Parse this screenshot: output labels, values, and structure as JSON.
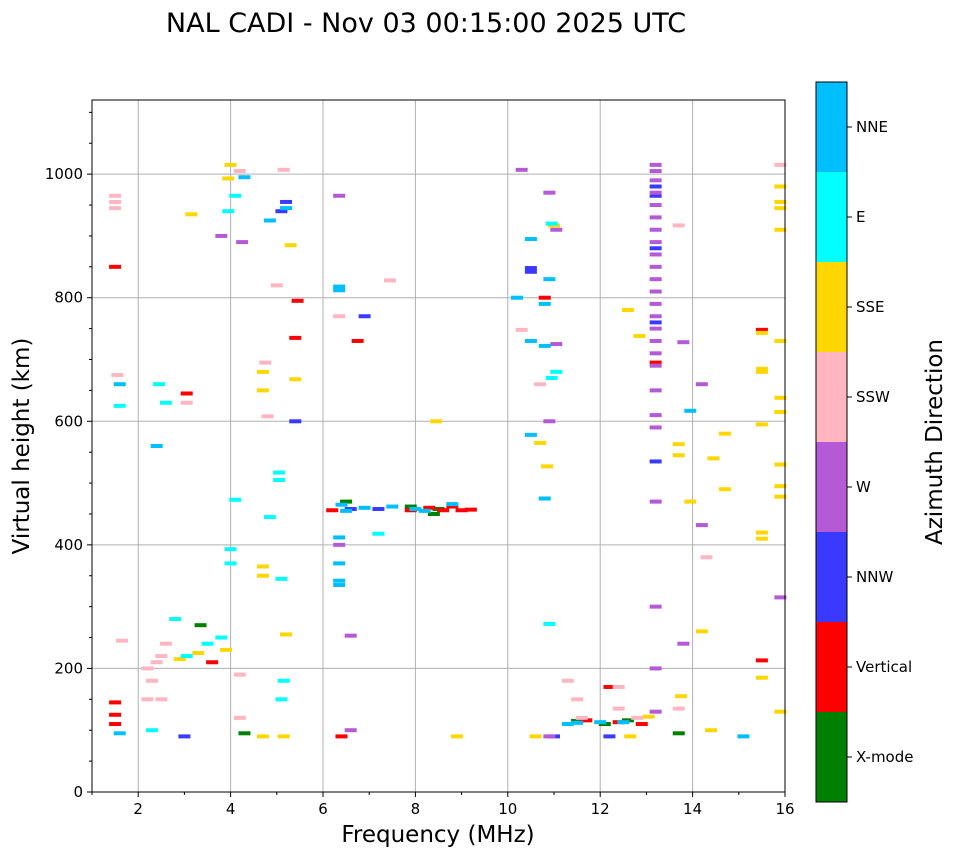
{
  "chart_data": {
    "type": "scatter",
    "title": "NAL CADI - Nov 03 00:15:00 2025 UTC",
    "xlabel": "Frequency (MHz)",
    "ylabel": "Virtual height (km)",
    "xlim": [
      1,
      16
    ],
    "ylim": [
      0,
      1120
    ],
    "xticks": [
      2,
      4,
      6,
      8,
      10,
      12,
      14,
      16
    ],
    "yticks": [
      0,
      200,
      400,
      600,
      800,
      1000
    ],
    "grid": true,
    "colorbar": {
      "label": "Azimuth Direction",
      "categories": [
        "X-mode",
        "Vertical",
        "NNW",
        "W",
        "SSW",
        "SSE",
        "E",
        "NNE"
      ],
      "colors": [
        "#008000",
        "#ff0000",
        "#3a3aff",
        "#b45ad6",
        "#ffb6c1",
        "#ffd700",
        "#00ffff",
        "#00bfff"
      ]
    },
    "series": [
      {
        "name": "X-mode",
        "points": [
          [
            3.35,
            270
          ],
          [
            4.3,
            95
          ],
          [
            6.5,
            470
          ],
          [
            7.9,
            462
          ],
          [
            8.5,
            458
          ],
          [
            8.4,
            450
          ],
          [
            11.5,
            115
          ],
          [
            12.1,
            110
          ],
          [
            12.6,
            116
          ],
          [
            13.7,
            95
          ]
        ]
      },
      {
        "name": "Vertical",
        "points": [
          [
            1.5,
            850
          ],
          [
            1.5,
            145
          ],
          [
            1.5,
            125
          ],
          [
            1.5,
            110
          ],
          [
            3.05,
            645
          ],
          [
            5.4,
            735
          ],
          [
            5.45,
            795
          ],
          [
            6.75,
            730
          ],
          [
            6.4,
            90
          ],
          [
            6.2,
            456
          ],
          [
            7.9,
            456
          ],
          [
            8.3,
            460
          ],
          [
            8.8,
            462
          ],
          [
            9.2,
            457
          ],
          [
            9.0,
            456
          ],
          [
            8.6,
            456
          ],
          [
            10.8,
            800
          ],
          [
            11.7,
            116
          ],
          [
            12.4,
            113
          ],
          [
            12.9,
            110
          ],
          [
            12.2,
            170
          ],
          [
            13.2,
            695
          ],
          [
            15.5,
            213
          ],
          [
            15.5,
            748
          ],
          [
            3.6,
            210
          ]
        ]
      },
      {
        "name": "NNW",
        "points": [
          [
            3.0,
            90
          ],
          [
            5.4,
            600
          ],
          [
            5.1,
            940
          ],
          [
            5.2,
            955
          ],
          [
            6.6,
            458
          ],
          [
            7.2,
            458
          ],
          [
            6.9,
            770
          ],
          [
            10.5,
            848
          ],
          [
            10.5,
            842
          ],
          [
            12.2,
            90
          ],
          [
            11.0,
            90
          ],
          [
            13.2,
            535
          ],
          [
            13.2,
            760
          ],
          [
            13.2,
            980
          ],
          [
            13.2,
            965
          ],
          [
            13.2,
            880
          ]
        ]
      },
      {
        "name": "W",
        "points": [
          [
            3.8,
            900
          ],
          [
            4.25,
            890
          ],
          [
            6.35,
            965
          ],
          [
            6.35,
            400
          ],
          [
            6.6,
            253
          ],
          [
            6.6,
            100
          ],
          [
            10.9,
            970
          ],
          [
            10.9,
            600
          ],
          [
            10.3,
            1007
          ],
          [
            11.05,
            910
          ],
          [
            10.9,
            90
          ],
          [
            11.05,
            725
          ],
          [
            13.8,
            728
          ],
          [
            13.8,
            240
          ],
          [
            14.2,
            660
          ],
          [
            14.2,
            432
          ],
          [
            15.9,
            315
          ],
          [
            13.2,
            1015
          ],
          [
            13.2,
            1005
          ],
          [
            13.2,
            990
          ],
          [
            13.2,
            970
          ],
          [
            13.2,
            950
          ],
          [
            13.2,
            930
          ],
          [
            13.2,
            910
          ],
          [
            13.2,
            890
          ],
          [
            13.2,
            870
          ],
          [
            13.2,
            850
          ],
          [
            13.2,
            830
          ],
          [
            13.2,
            810
          ],
          [
            13.2,
            790
          ],
          [
            13.2,
            770
          ],
          [
            13.2,
            750
          ],
          [
            13.2,
            730
          ],
          [
            13.2,
            710
          ],
          [
            13.2,
            690
          ],
          [
            13.2,
            650
          ],
          [
            13.2,
            610
          ],
          [
            13.2,
            590
          ],
          [
            13.2,
            470
          ],
          [
            13.2,
            300
          ],
          [
            13.2,
            200
          ],
          [
            13.2,
            130
          ]
        ]
      },
      {
        "name": "SSW",
        "points": [
          [
            1.5,
            965
          ],
          [
            1.5,
            955
          ],
          [
            1.5,
            945
          ],
          [
            1.55,
            675
          ],
          [
            1.65,
            245
          ],
          [
            2.2,
            200
          ],
          [
            2.3,
            180
          ],
          [
            2.4,
            210
          ],
          [
            2.5,
            220
          ],
          [
            2.6,
            240
          ],
          [
            2.2,
            150
          ],
          [
            2.5,
            150
          ],
          [
            3.05,
            630
          ],
          [
            4.2,
            1005
          ],
          [
            4.75,
            695
          ],
          [
            5.15,
            1007
          ],
          [
            5.0,
            820
          ],
          [
            4.8,
            608
          ],
          [
            4.2,
            190
          ],
          [
            4.2,
            120
          ],
          [
            6.35,
            770
          ],
          [
            7.45,
            828
          ],
          [
            10.3,
            748
          ],
          [
            10.7,
            660
          ],
          [
            11.3,
            180
          ],
          [
            11.5,
            150
          ],
          [
            11.6,
            120
          ],
          [
            12.4,
            170
          ],
          [
            12.4,
            135
          ],
          [
            12.8,
            120
          ],
          [
            13.7,
            917
          ],
          [
            13.7,
            135
          ],
          [
            14.3,
            380
          ],
          [
            15.9,
            1015
          ]
        ]
      },
      {
        "name": "SSE",
        "points": [
          [
            4.0,
            1015
          ],
          [
            3.95,
            993
          ],
          [
            3.15,
            935
          ],
          [
            5.3,
            885
          ],
          [
            4.7,
            680
          ],
          [
            4.7,
            650
          ],
          [
            5.4,
            668
          ],
          [
            8.45,
            600
          ],
          [
            10.7,
            565
          ],
          [
            10.85,
            527
          ],
          [
            11.0,
            917
          ],
          [
            12.6,
            780
          ],
          [
            12.85,
            738
          ],
          [
            13.7,
            563
          ],
          [
            13.7,
            545
          ],
          [
            13.75,
            155
          ],
          [
            13.95,
            470
          ],
          [
            14.45,
            540
          ],
          [
            14.7,
            580
          ],
          [
            14.2,
            260
          ],
          [
            14.4,
            100
          ],
          [
            14.7,
            490
          ],
          [
            15.5,
            595
          ],
          [
            15.5,
            420
          ],
          [
            15.5,
            410
          ],
          [
            15.5,
            743
          ],
          [
            15.5,
            685
          ],
          [
            15.5,
            680
          ],
          [
            15.5,
            185
          ],
          [
            15.9,
            980
          ],
          [
            15.9,
            955
          ],
          [
            15.9,
            945
          ],
          [
            15.9,
            910
          ],
          [
            15.9,
            730
          ],
          [
            15.9,
            638
          ],
          [
            15.9,
            615
          ],
          [
            15.9,
            530
          ],
          [
            15.9,
            495
          ],
          [
            15.9,
            478
          ],
          [
            15.9,
            130
          ],
          [
            4.7,
            350
          ],
          [
            4.7,
            365
          ],
          [
            5.2,
            255
          ],
          [
            4.7,
            90
          ],
          [
            5.15,
            90
          ],
          [
            8.9,
            90
          ],
          [
            10.6,
            90
          ],
          [
            12.65,
            90
          ],
          [
            13.05,
            122
          ],
          [
            3.9,
            230
          ],
          [
            3.3,
            225
          ],
          [
            2.9,
            215
          ]
        ]
      },
      {
        "name": "E",
        "points": [
          [
            1.6,
            625
          ],
          [
            2.45,
            660
          ],
          [
            2.6,
            630
          ],
          [
            4.1,
            965
          ],
          [
            3.95,
            940
          ],
          [
            4.0,
            370
          ],
          [
            4.0,
            393
          ],
          [
            4.1,
            473
          ],
          [
            5.05,
            517
          ],
          [
            5.05,
            505
          ],
          [
            5.1,
            345
          ],
          [
            5.15,
            180
          ],
          [
            5.1,
            150
          ],
          [
            4.85,
            445
          ],
          [
            7.2,
            418
          ],
          [
            10.95,
            920
          ],
          [
            11.05,
            680
          ],
          [
            10.95,
            670
          ],
          [
            10.9,
            272
          ],
          [
            2.3,
            100
          ],
          [
            3.8,
            250
          ],
          [
            3.5,
            240
          ],
          [
            3.05,
            220
          ],
          [
            2.8,
            280
          ]
        ]
      },
      {
        "name": "NNE",
        "points": [
          [
            1.6,
            660
          ],
          [
            1.6,
            95
          ],
          [
            2.4,
            560
          ],
          [
            4.3,
            995
          ],
          [
            5.2,
            945
          ],
          [
            4.85,
            925
          ],
          [
            6.35,
            818
          ],
          [
            6.35,
            812
          ],
          [
            6.35,
            370
          ],
          [
            6.35,
            342
          ],
          [
            6.35,
            335
          ],
          [
            6.35,
            412
          ],
          [
            6.4,
            465
          ],
          [
            6.5,
            455
          ],
          [
            6.9,
            460
          ],
          [
            7.5,
            462
          ],
          [
            8.0,
            458
          ],
          [
            8.2,
            455
          ],
          [
            8.8,
            466
          ],
          [
            10.2,
            800
          ],
          [
            10.5,
            895
          ],
          [
            10.5,
            730
          ],
          [
            10.9,
            830
          ],
          [
            10.8,
            790
          ],
          [
            10.5,
            578
          ],
          [
            10.8,
            475
          ],
          [
            10.8,
            722
          ],
          [
            11.3,
            110
          ],
          [
            11.5,
            112
          ],
          [
            12.0,
            113
          ],
          [
            12.5,
            113
          ],
          [
            13.95,
            617
          ],
          [
            15.1,
            90
          ]
        ]
      }
    ]
  }
}
